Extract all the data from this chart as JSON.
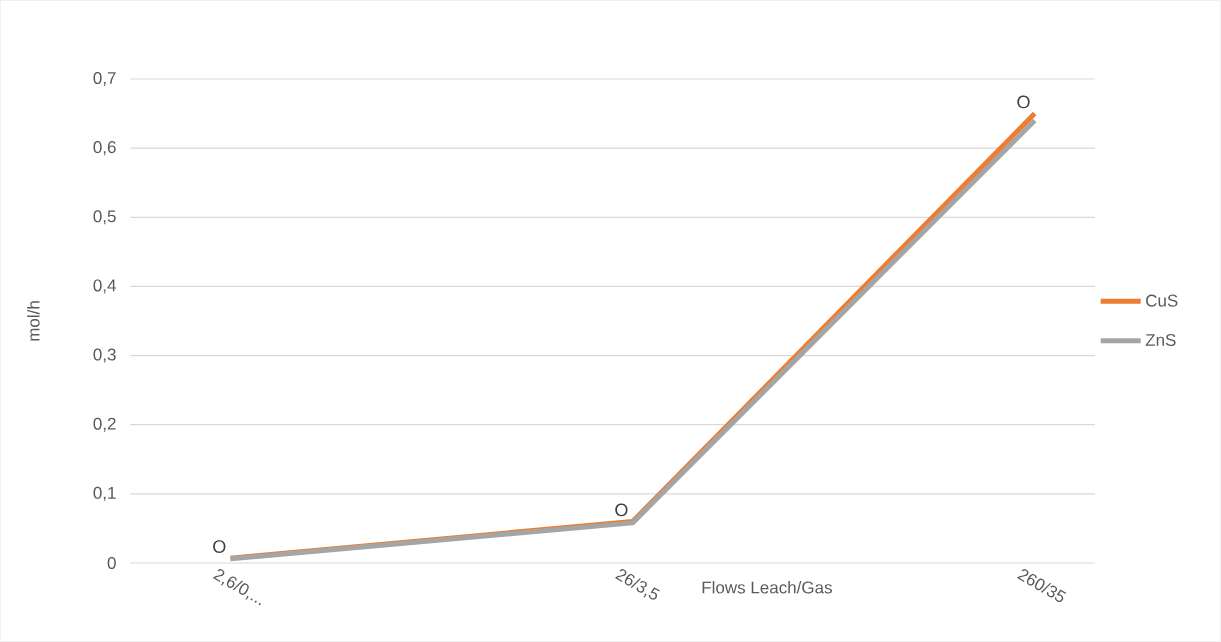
{
  "chart_data": {
    "type": "line",
    "xlabel": "Flows Leach/Gas",
    "ylabel": "mol/h",
    "categories": [
      "2,6/0,...",
      "26/3,5",
      "260/35"
    ],
    "series": [
      {
        "name": "CuS",
        "color": "#ed7d31",
        "values": [
          0.007,
          0.06,
          0.65
        ]
      },
      {
        "name": "ZnS",
        "color": "#a5a5a5",
        "values": [
          0.006,
          0.058,
          0.64
        ]
      }
    ],
    "ylim": [
      0,
      0.7
    ],
    "yticks": [
      {
        "value": 0,
        "label": "0"
      },
      {
        "value": 0.1,
        "label": "0,1"
      },
      {
        "value": 0.2,
        "label": "0,2"
      },
      {
        "value": 0.3,
        "label": "0,3"
      },
      {
        "value": 0.4,
        "label": "0,4"
      },
      {
        "value": 0.5,
        "label": "0,5"
      },
      {
        "value": 0.6,
        "label": "0,6"
      },
      {
        "value": 0.7,
        "label": "0,7"
      }
    ],
    "annotations": [
      "O",
      "O",
      "O"
    ],
    "grid": "y",
    "legend": "right",
    "marker": "none",
    "line_style": "solid"
  }
}
